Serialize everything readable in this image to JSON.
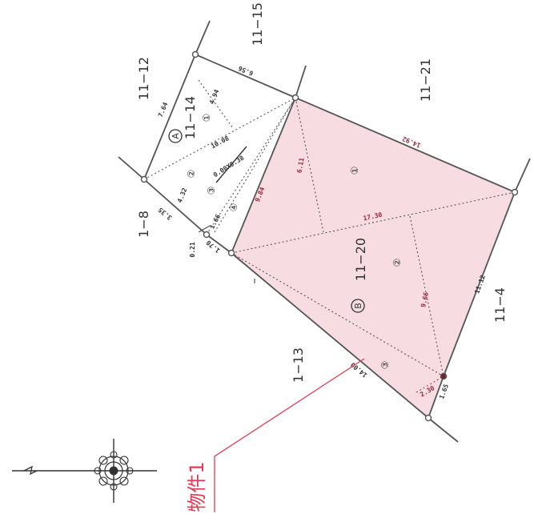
{
  "plan": {
    "lots": {
      "lot_11_12": "11−12",
      "lot_11_15": "11−15",
      "lot_11_21": "11−21",
      "lot_11_14": "11−14",
      "lot_1_8": "1−8",
      "lot_11_20": "11−20",
      "lot_1_13": "1−13",
      "lot_11_4": "11−4"
    },
    "markers": {
      "a": "A",
      "b": "B"
    },
    "triangles": {
      "t1": "①",
      "t2": "②",
      "t3": "③",
      "t4": "④"
    },
    "measurements": {
      "m_7_64": "7.64",
      "m_6_56": "6.56",
      "m_4_94": "4.94",
      "m_10_08": "10.08",
      "m_cert": "0.00X0.38",
      "m_3_35": "3.35",
      "m_4_32": "4.32",
      "m_1_66": "1.66",
      "m_0_21": "0.21",
      "m_1_70": "1.70",
      "m_9_84": "9.84",
      "m_6_11": "6.11",
      "m_14_92": "14.92",
      "m_17_30": "17.30",
      "m_9_66": "9.66",
      "m_11_12": "11.12",
      "m_14_00": "14.00",
      "m_2_30": "2.30",
      "m_1_65": "1.65"
    },
    "property_label": "物件1",
    "colors": {
      "parcel_fill": "#f7dde1",
      "accent": "#e33b55",
      "boundary": "#555555",
      "dim_dot": "#9b2335"
    }
  }
}
